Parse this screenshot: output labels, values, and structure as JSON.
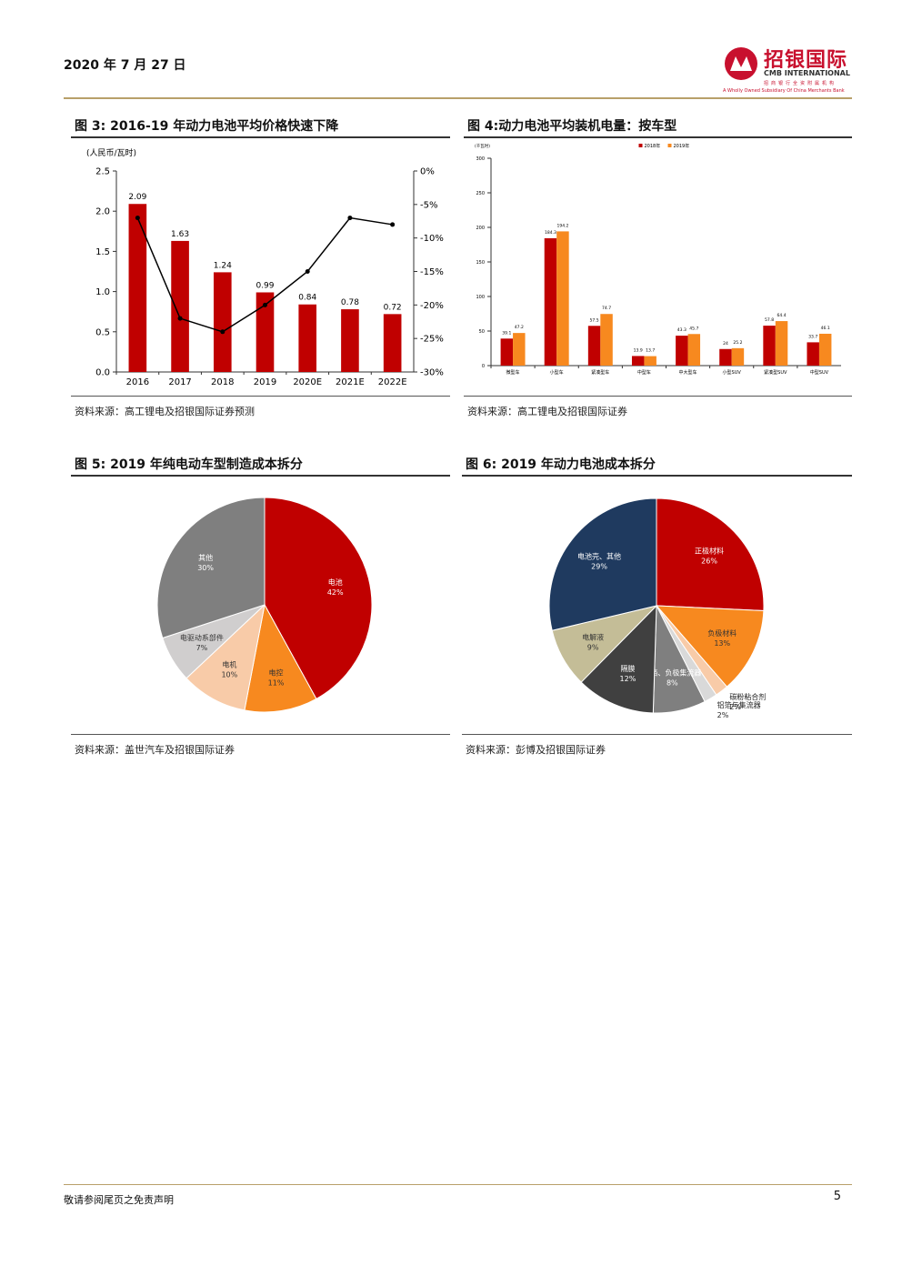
{
  "header": {
    "date": "2020 年 7 月 27 日",
    "logo_name": "招银国际",
    "logo_en": "CMB INTERNATIONAL",
    "logo_sub": "招商银行全资附属机构",
    "logo_sub_en": "A Wholly Owned Subsidiary Of China Merchants Bank"
  },
  "chart_data": [
    {
      "type": "bar",
      "title": "图 3: 2016-19 年动力电池平均价格快速下降",
      "y_label": "(人民币/瓦时)",
      "categories": [
        "2016",
        "2017",
        "2018",
        "2019",
        "2020E",
        "2021E",
        "2022E"
      ],
      "series": [
        {
          "color": "#c00000",
          "values": [
            2.09,
            1.63,
            1.24,
            0.99,
            0.84,
            0.78,
            0.72
          ]
        },
        {
          "type": "line",
          "axis": "y2",
          "color": "#000000",
          "values": [
            -7,
            -22,
            -24,
            -20,
            -15,
            -7,
            -8
          ]
        }
      ],
      "ylim": [
        0,
        2.5
      ],
      "yticks": [
        {
          "value": 0,
          "label": "0.0"
        },
        0.5,
        {
          "value": 1,
          "label": "1.0"
        },
        1.5,
        {
          "value": 2,
          "label": "2.0"
        },
        2.5
      ],
      "y2lim": [
        -30,
        0
      ],
      "y2ticks": [
        {
          "value": 0,
          "label": "0%"
        },
        {
          "value": -5,
          "label": "-5%"
        },
        {
          "value": -10,
          "label": "-10%"
        },
        {
          "value": -15,
          "label": "-15%"
        },
        {
          "value": -20,
          "label": "-20%"
        },
        {
          "value": -25,
          "label": "-25%"
        },
        {
          "value": -30,
          "label": "-30%"
        }
      ],
      "source": "资料来源：高工锂电及招银国际证券预测"
    },
    {
      "type": "bar",
      "title": "图 4:动力电池平均装机电量：按车型",
      "y_label": "(千瓦时)",
      "categories": [
        "微型车",
        "小型车",
        "紧凑型车",
        "中型车",
        "中大型车",
        "小型SUV",
        "紧凑型SUV",
        "中型SUV"
      ],
      "series": [
        {
          "name": "2018年",
          "color": "#c00000",
          "values": [
            39.1,
            184.3,
            57.5,
            13.9,
            43.3,
            24.0,
            57.8,
            33.7
          ]
        },
        {
          "name": "2019年",
          "color": "#f7891f",
          "values": [
            47.2,
            194.2,
            74.7,
            13.7,
            45.7,
            25.2,
            64.4,
            46.1
          ]
        }
      ],
      "ylim": [
        0,
        300
      ],
      "yticks": [
        0,
        50,
        100,
        150,
        200,
        250,
        300
      ],
      "source": "资料来源：高工锂电及招银国际证券"
    },
    {
      "type": "pie",
      "title": "图 5: 2019 年纯电动车型制造成本拆分",
      "categories": [
        "电池",
        "电控",
        "电机",
        "电驱动系部件",
        "其他"
      ],
      "values": [
        42,
        11,
        10,
        7,
        30
      ],
      "value_labels": [
        "42%",
        "11%",
        "10%",
        "7%",
        "30%"
      ],
      "colors": [
        "#c00000",
        "#f7891f",
        "#f8cba8",
        "#d0cece",
        "#7f7f7f"
      ],
      "source": "资料来源：盖世汽车及招银国际证券"
    },
    {
      "type": "pie",
      "title": "图 6: 2019 年动力电池成本拆分",
      "categories": [
        "正极材料",
        "负极材料",
        "碳粉粘合剂",
        "铝箔与集流器",
        "铜箔、负极集流器",
        "隔膜",
        "电解液",
        "电池壳、其他"
      ],
      "values": [
        26,
        13,
        2,
        2,
        8,
        12,
        9,
        29
      ],
      "value_labels": [
        "26%",
        "13%",
        "2%",
        "2%",
        "8%",
        "12%",
        "9%",
        "29%"
      ],
      "colors": [
        "#c00000",
        "#f7891f",
        "#f8cba8",
        "#d9d9d9",
        "#7f7f7f",
        "#404040",
        "#c4bd97",
        "#1f3a5f"
      ],
      "source": "资料来源：彭博及招银国际证券"
    }
  ],
  "footer": {
    "disclaimer": "敬请参阅尾页之免责声明",
    "page": "5"
  }
}
